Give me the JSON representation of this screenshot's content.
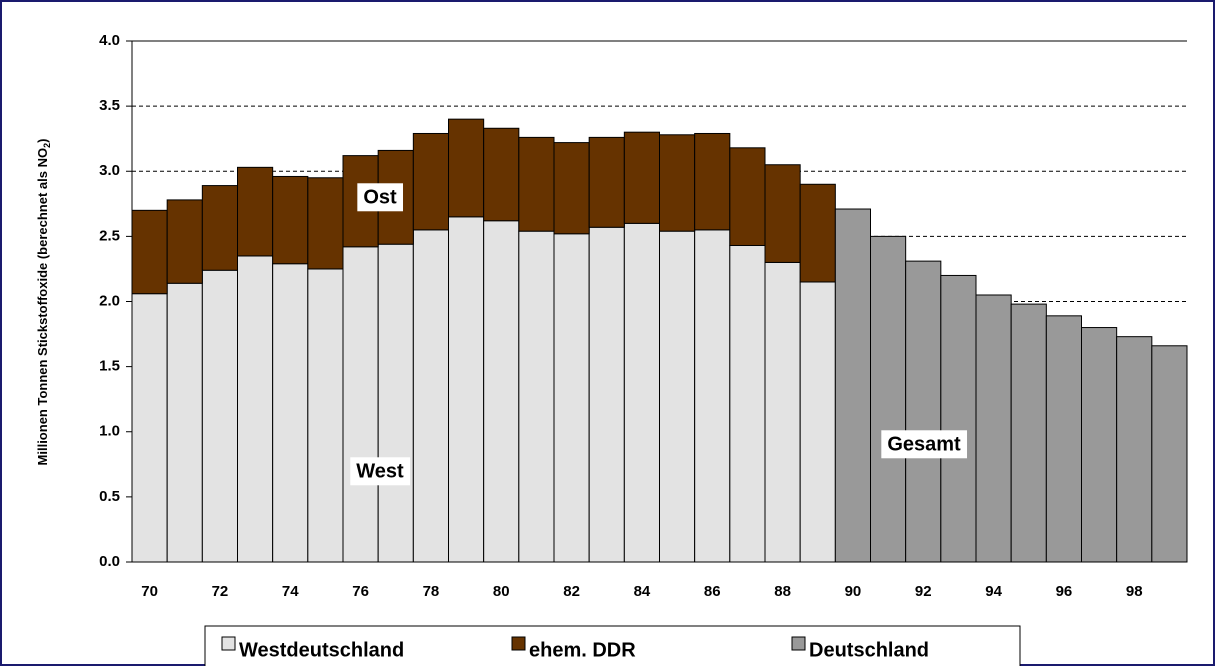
{
  "chart_data": {
    "type": "stacked_bar",
    "y_label": [
      "Millionen Tonnen Stickstoffoxide (berechnet als NO",
      "2",
      ")"
    ],
    "categories": [
      "70",
      null,
      "72",
      null,
      "74",
      null,
      "76",
      null,
      "78",
      null,
      "80",
      null,
      "82",
      null,
      "84",
      null,
      "86",
      null,
      "88",
      null,
      "90",
      null,
      "92",
      null,
      "94",
      null,
      "96",
      null,
      "98",
      null
    ],
    "series": [
      {
        "name": "Westdeutschland",
        "color": "#e3e3e3",
        "values": [
          2.06,
          2.14,
          2.24,
          2.35,
          2.29,
          2.25,
          2.42,
          2.44,
          2.55,
          2.65,
          2.62,
          2.54,
          2.52,
          2.57,
          2.6,
          2.54,
          2.55,
          2.43,
          2.3,
          2.15,
          null,
          null,
          null,
          null,
          null,
          null,
          null,
          null,
          null,
          null
        ]
      },
      {
        "name": "ehem. DDR",
        "color": "#663300",
        "values": [
          0.64,
          0.64,
          0.65,
          0.68,
          0.67,
          0.7,
          0.7,
          0.72,
          0.74,
          0.75,
          0.71,
          0.72,
          0.7,
          0.69,
          0.7,
          0.74,
          0.74,
          0.75,
          0.75,
          0.75,
          null,
          null,
          null,
          null,
          null,
          null,
          null,
          null,
          null,
          null
        ]
      },
      {
        "name": "Deutschland",
        "color": "#999999",
        "values": [
          null,
          null,
          null,
          null,
          null,
          null,
          null,
          null,
          null,
          null,
          null,
          null,
          null,
          null,
          null,
          null,
          null,
          null,
          null,
          null,
          2.71,
          2.5,
          2.31,
          2.2,
          2.05,
          1.98,
          1.89,
          1.8,
          1.73,
          1.66
        ]
      }
    ],
    "annotations": [
      "Ost",
      "West",
      "Gesamt"
    ],
    "ylim": [
      0,
      4
    ],
    "yticks": [
      {
        "value": 0,
        "label": "0.0"
      },
      0.5,
      {
        "value": 1,
        "label": "1.0"
      },
      1.5,
      {
        "value": 2,
        "label": "2.0"
      },
      2.5,
      {
        "value": 3,
        "label": "3.0"
      },
      3.5,
      {
        "value": 4,
        "label": "4.0"
      }
    ],
    "grid": true,
    "legend": "bottom"
  }
}
